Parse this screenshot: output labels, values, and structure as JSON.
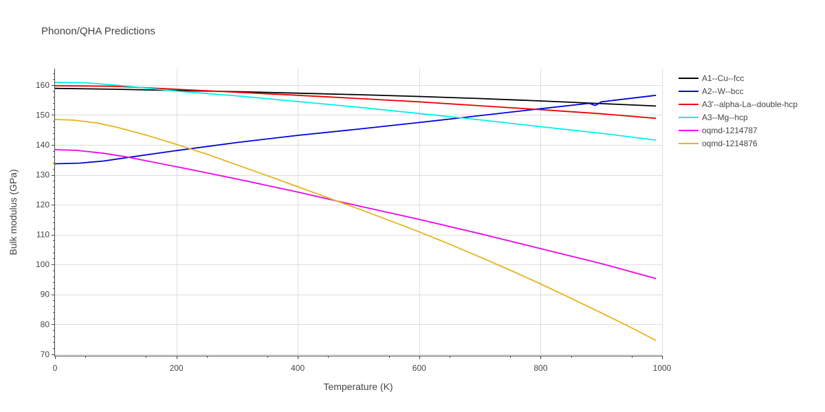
{
  "chart_data": {
    "type": "line",
    "title": "Phonon/QHA Predictions",
    "xlabel": "Temperature (K)",
    "ylabel": "Bulk modulus (GPa)",
    "xlim": [
      0,
      1000
    ],
    "ylim": [
      69.5,
      165.5
    ],
    "xticks": [
      0,
      200,
      400,
      600,
      800,
      1000
    ],
    "yticks": [
      70,
      80,
      90,
      100,
      110,
      120,
      130,
      140,
      150,
      160
    ],
    "grid": true,
    "legend_position": "right",
    "series": [
      {
        "name": "A1--Cu--fcc",
        "color": "#000000",
        "x": [
          0,
          100,
          200,
          300,
          400,
          500,
          600,
          700,
          800,
          900,
          990
        ],
        "y": [
          158.9,
          158.6,
          158.2,
          157.8,
          157.3,
          156.8,
          156.2,
          155.5,
          154.7,
          153.8,
          153.0
        ]
      },
      {
        "name": "A2--W--bcc",
        "color": "#0000dd",
        "x": [
          0,
          40,
          80,
          120,
          200,
          300,
          400,
          500,
          600,
          700,
          800,
          880,
          890,
          900,
          990
        ],
        "y": [
          133.7,
          133.9,
          134.6,
          135.8,
          138.1,
          140.8,
          143.2,
          145.3,
          147.5,
          149.8,
          152.1,
          153.9,
          153.2,
          154.4,
          156.6
        ]
      },
      {
        "name": "A3'--alpha-La--double-hcp",
        "color": "#ee0000",
        "x": [
          0,
          100,
          200,
          300,
          400,
          500,
          600,
          700,
          800,
          900,
          990
        ],
        "y": [
          159.8,
          159.6,
          158.6,
          157.6,
          156.6,
          155.5,
          154.4,
          153.1,
          151.8,
          150.4,
          148.9
        ]
      },
      {
        "name": "A3--Mg--hcp",
        "color": "#00eeee",
        "x": [
          0,
          50,
          100,
          150,
          200,
          300,
          400,
          500,
          600,
          700,
          800,
          900,
          990
        ],
        "y": [
          160.9,
          160.8,
          160.0,
          159.0,
          158.0,
          156.4,
          154.5,
          152.6,
          150.5,
          148.4,
          146.1,
          143.9,
          141.6
        ]
      },
      {
        "name": "oqmd-1214787",
        "color": "#ee00ee",
        "x": [
          0,
          35,
          80,
          120,
          200,
          300,
          400,
          500,
          600,
          700,
          800,
          900,
          990
        ],
        "y": [
          138.4,
          138.2,
          137.2,
          135.9,
          132.7,
          128.6,
          124.2,
          119.6,
          115.1,
          110.3,
          105.3,
          100.3,
          95.3
        ]
      },
      {
        "name": "oqmd-1214876",
        "color": "#e6b31a",
        "x": [
          0,
          30,
          70,
          100,
          150,
          200,
          250,
          300,
          350,
          400,
          450,
          500,
          550,
          600,
          650,
          700,
          750,
          800,
          850,
          900,
          950,
          990
        ],
        "y": [
          148.5,
          148.3,
          147.3,
          146.0,
          143.3,
          140.2,
          136.9,
          133.3,
          129.7,
          126.0,
          122.3,
          118.6,
          114.8,
          110.9,
          106.8,
          102.5,
          98.1,
          93.5,
          88.7,
          83.8,
          78.8,
          74.6
        ]
      }
    ]
  }
}
